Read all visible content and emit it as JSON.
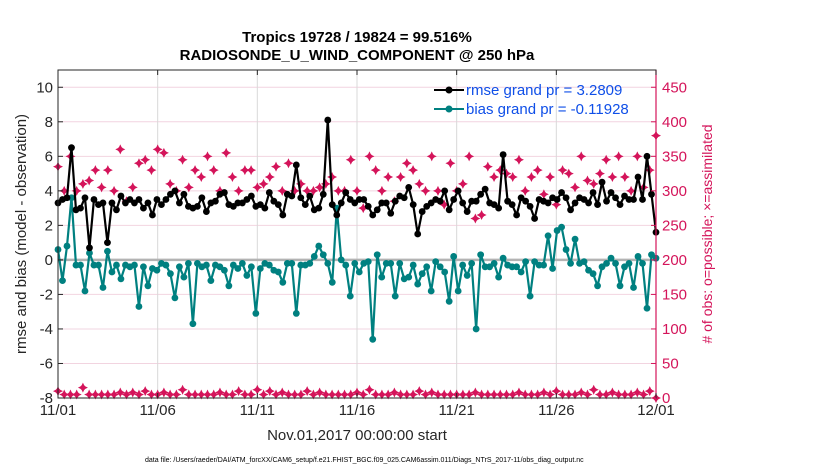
{
  "chart_data": {
    "type": "line",
    "title": [
      "Tropics 19728 / 19824 = 99.516%",
      "RADIOSONDE_U_WIND_COMPONENT @ 250 hPa"
    ],
    "xlabel": "Nov.01,2017 00:00:00 start",
    "ylabel": "rmse and bias (model - observation)",
    "ylabel_right": "# of obs: o=possible; ×=assimilated",
    "footer": "data file: /Users/raeder/DAI/ATM_forcXX/CAM6_setup/f.e21.FHIST_BGC.f09_025.CAM6assim.011/Diags_NTrS_2017-11/obs_diag_output.nc",
    "xlim_days": [
      0,
      30
    ],
    "x_ticks": [
      {
        "day": 0,
        "label": "11/01"
      },
      {
        "day": 5,
        "label": "11/06"
      },
      {
        "day": 10,
        "label": "11/11"
      },
      {
        "day": 15,
        "label": "11/16"
      },
      {
        "day": 20,
        "label": "11/21"
      },
      {
        "day": 25,
        "label": "11/26"
      },
      {
        "day": 30,
        "label": "12/01"
      }
    ],
    "ylim": [
      -8,
      11
    ],
    "y_ticks": [
      -8,
      -6,
      -4,
      -2,
      0,
      2,
      4,
      6,
      8,
      10
    ],
    "ylim_right": [
      0,
      475
    ],
    "y_ticks_right": [
      0,
      50,
      100,
      150,
      200,
      250,
      300,
      350,
      400,
      450
    ],
    "grid": "horizontal-right-axis + vertical-x",
    "legend": {
      "placement": "top-right",
      "entries": [
        {
          "label": "rmse grand pr = 3.2809",
          "color": "#000000"
        },
        {
          "label": "bias grand pr = -0.11928",
          "color": "#008080"
        }
      ]
    },
    "colors": {
      "rmse": "#000000",
      "bias": "#008080",
      "obs": "#d4145a",
      "zero_line": "#b3b3b3",
      "grid": "#f2d4e0",
      "vgrid": "#d9d9d9",
      "legend_text": "#0f4fe8"
    },
    "x_step_days": 0.25,
    "series": [
      {
        "name": "rmse",
        "axis": "left",
        "values": [
          3.3,
          3.5,
          3.6,
          6.5,
          2.9,
          3.0,
          3.6,
          0.7,
          3.5,
          3.2,
          3.3,
          1.0,
          3.3,
          2.9,
          3.7,
          3.3,
          3.5,
          3.3,
          3.5,
          3.0,
          3.3,
          2.6,
          3.5,
          3.2,
          3.5,
          3.8,
          4.0,
          3.3,
          3.8,
          3.1,
          3.0,
          3.1,
          3.6,
          2.8,
          3.3,
          3.4,
          3.8,
          3.9,
          3.2,
          3.1,
          3.3,
          3.3,
          3.5,
          3.7,
          3.1,
          3.2,
          3.0,
          3.9,
          3.4,
          3.2,
          2.6,
          3.8,
          3.7,
          5.5,
          3.6,
          3.2,
          3.7,
          2.9,
          3.0,
          3.8,
          8.1,
          3.2,
          2.6,
          3.3,
          3.9,
          3.5,
          3.3,
          3.5,
          3.5,
          3.1,
          2.6,
          2.9,
          3.3,
          3.3,
          2.7,
          3.4,
          3.7,
          3.6,
          4.2,
          3.2,
          1.5,
          2.8,
          3.1,
          3.3,
          3.5,
          3.4,
          4.0,
          2.9,
          3.5,
          4.0,
          3.3,
          2.8,
          3.4,
          3.4,
          3.8,
          4.1,
          3.3,
          3.2,
          3.0,
          6.1,
          3.4,
          3.2,
          2.6,
          3.6,
          3.4,
          3.1,
          2.4,
          3.5,
          3.4,
          3.3,
          3.6,
          3.5,
          3.9,
          3.6,
          2.9,
          3.3,
          3.6,
          3.5,
          3.3,
          3.9,
          3.2,
          4.5,
          3.4,
          3.9,
          3.6,
          3.2,
          3.7,
          3.5,
          3.5,
          4.8,
          3.5,
          6.0,
          3.8,
          1.6
        ],
        "note": "values approximate, read from pixels"
      },
      {
        "name": "bias",
        "axis": "left",
        "values": [
          0.6,
          -1.2,
          0.8,
          3.6,
          -0.3,
          -0.3,
          -1.8,
          0.4,
          -0.3,
          -0.3,
          -1.6,
          0.5,
          -0.7,
          -0.3,
          -1.1,
          -0.3,
          -0.4,
          -0.3,
          -2.7,
          -0.4,
          -1.5,
          -0.5,
          -0.6,
          -0.2,
          -0.3,
          -0.8,
          -2.2,
          -0.4,
          -1.0,
          -0.2,
          -3.7,
          -0.2,
          -0.4,
          -0.3,
          -1.2,
          -0.3,
          -0.4,
          -0.6,
          -1.5,
          -0.3,
          -0.5,
          -0.2,
          -0.9,
          -0.4,
          -3.1,
          -0.5,
          -0.2,
          -0.3,
          -0.6,
          -0.7,
          -1.3,
          -0.2,
          -0.2,
          -3.1,
          -0.3,
          -0.3,
          -0.2,
          0.2,
          0.8,
          0.3,
          -0.2,
          -1.3,
          3.0,
          0.0,
          -0.3,
          -2.1,
          -0.2,
          -0.7,
          -0.2,
          -0.1,
          -4.6,
          0.3,
          -1.0,
          -0.2,
          -0.2,
          -2.1,
          -0.2,
          -1.1,
          -1.0,
          -0.3,
          -1.4,
          -0.8,
          -0.4,
          -1.8,
          -0.1,
          -0.4,
          -0.7,
          -2.4,
          0.2,
          -1.8,
          -0.3,
          -0.9,
          -0.2,
          -4.0,
          0.3,
          -0.4,
          -0.4,
          -0.2,
          -1.0,
          0.1,
          -0.3,
          -0.4,
          -0.4,
          -0.7,
          -0.1,
          -2.1,
          -0.1,
          -0.3,
          -0.3,
          1.4,
          -0.5,
          1.7,
          1.9,
          0.6,
          -0.2,
          1.2,
          -0.2,
          -0.1,
          -0.6,
          -0.8,
          -1.5,
          -0.4,
          -0.2,
          0.1,
          -0.2,
          -1.5,
          -0.4,
          -0.2,
          -1.6,
          0.2,
          -0.2,
          -2.8,
          0.3,
          0.1
        ],
        "note": "values approximate, read from pixels"
      },
      {
        "name": "obs possible (o)",
        "axis": "right",
        "values": [
          335,
          300,
          350,
          300,
          310,
          315,
          330,
          305,
          330,
          300,
          360,
          285,
          305,
          340,
          345,
          330,
          360,
          355,
          310,
          300,
          345,
          305,
          330,
          320,
          350,
          330,
          300,
          355,
          320,
          300,
          330,
          330,
          305,
          310,
          320,
          335,
          300,
          340,
          300,
          310,
          300,
          300,
          305,
          310,
          320,
          300,
          300,
          345,
          300,
          275,
          350,
          330,
          300,
          320,
          285,
          320,
          340,
          330,
          310,
          300,
          350,
          300,
          280,
          340,
          300,
          310,
          350,
          260,
          265,
          335,
          320,
          330,
          325,
          320,
          345,
          300,
          320,
          330,
          295,
          320,
          280,
          330,
          325,
          305,
          350,
          315,
          310,
          325,
          345,
          320,
          350,
          320,
          300,
          350,
          305,
          330,
          380
        ],
        "note": "approximate, read from pixels"
      },
      {
        "name": "obs assimilated (×)",
        "axis": "right",
        "values": [
          10,
          5,
          5,
          5,
          15,
          5,
          5,
          5,
          5,
          5,
          8,
          5,
          8,
          5,
          10,
          5,
          5,
          8,
          5,
          5,
          12,
          5,
          5,
          5,
          5,
          5,
          8,
          5,
          5,
          10,
          5,
          5,
          12,
          5,
          10,
          5,
          8,
          5,
          5,
          5,
          10,
          5,
          8,
          5,
          5,
          5,
          5,
          5,
          8,
          5,
          12,
          5,
          5,
          5,
          8,
          5,
          5,
          5,
          10,
          5,
          8,
          5,
          5,
          5,
          5,
          5,
          5,
          8,
          5,
          5,
          5,
          5,
          5,
          5,
          8,
          5,
          5,
          5,
          8,
          5,
          10,
          5,
          5,
          5,
          8,
          5,
          12,
          5,
          5,
          8,
          5,
          5,
          5,
          8,
          5,
          10,
          0
        ],
        "note": "approximate, read from pixels"
      }
    ]
  }
}
